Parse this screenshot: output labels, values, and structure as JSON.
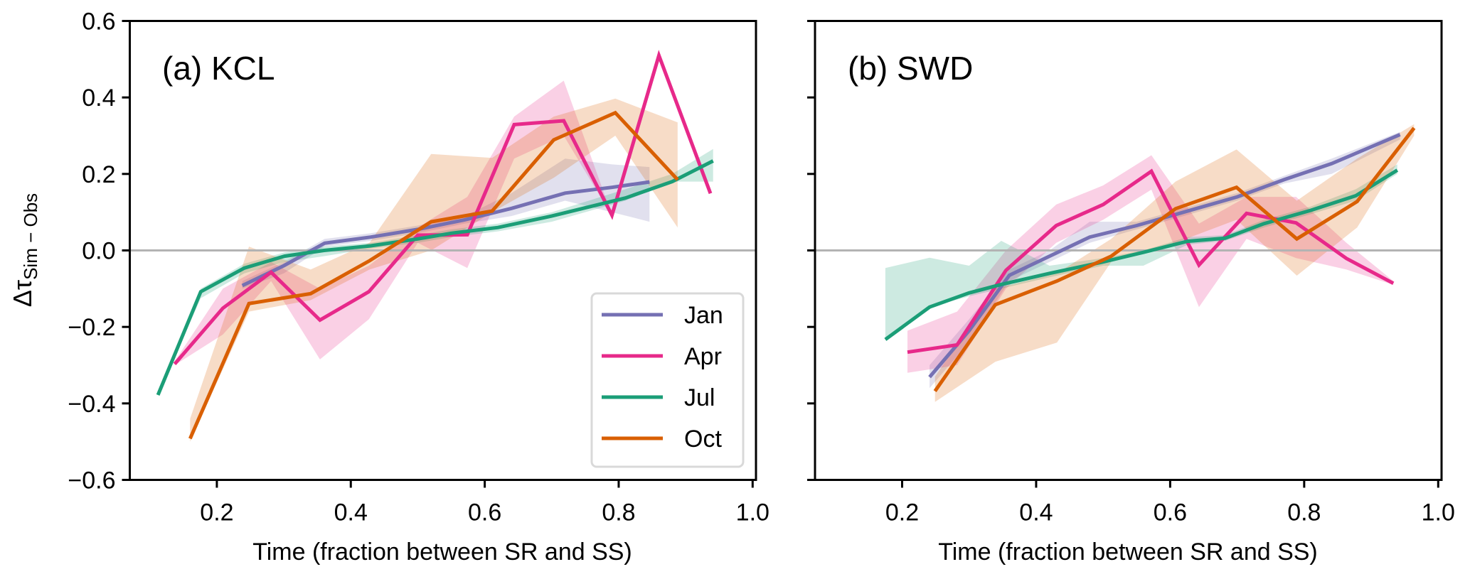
{
  "chart_data": [
    {
      "type": "line",
      "title": "(a) KCL",
      "xlabel": "Time (fraction between SR and SS)",
      "ylabel": "Δτ",
      "ylabel_subscript": "Sim − Obs",
      "xlim": [
        0.07,
        1.005
      ],
      "ylim": [
        -0.6,
        0.6
      ],
      "xticks": [
        0.2,
        0.4,
        0.6,
        0.8,
        1.0
      ],
      "xtick_labels": [
        "0.2",
        "0.4",
        "0.6",
        "0.8",
        "1.0"
      ],
      "yticks": [
        -0.6,
        -0.4,
        -0.2,
        0.0,
        0.2,
        0.4,
        0.6
      ],
      "ytick_labels": [
        "−0.6",
        "−0.4",
        "−0.2",
        "0.0",
        "0.2",
        "0.4",
        "0.6"
      ],
      "reference_line_y": 0.0,
      "grid": false,
      "legend_position": "lower-right",
      "series": [
        {
          "name": "Jan",
          "color": "#7570b3",
          "x": [
            0.238,
            0.3,
            0.361,
            0.43,
            0.5,
            0.57,
            0.64,
            0.72,
            0.79,
            0.846
          ],
          "y": [
            -0.092,
            -0.04,
            0.019,
            0.035,
            0.055,
            0.08,
            0.11,
            0.15,
            0.165,
            0.179
          ],
          "lower": [
            -0.1,
            -0.06,
            0.01,
            0.025,
            0.045,
            0.07,
            0.09,
            0.13,
            0.1,
            0.075
          ],
          "upper": [
            -0.08,
            -0.03,
            0.03,
            0.045,
            0.065,
            0.09,
            0.15,
            0.24,
            0.225,
            0.218
          ]
        },
        {
          "name": "Apr",
          "color": "#e7298a",
          "x": [
            0.137,
            0.209,
            0.281,
            0.354,
            0.427,
            0.5,
            0.574,
            0.644,
            0.718,
            0.79,
            0.86,
            0.937
          ],
          "y": [
            -0.297,
            -0.151,
            -0.057,
            -0.182,
            -0.108,
            0.04,
            0.041,
            0.329,
            0.339,
            0.092,
            0.51,
            0.149
          ],
          "lower": [
            -0.3,
            -0.22,
            -0.08,
            -0.285,
            -0.18,
            0.02,
            -0.046,
            0.24,
            0.3,
            0.09,
            0.51,
            0.149
          ],
          "upper": [
            -0.29,
            -0.1,
            -0.03,
            -0.1,
            -0.04,
            0.06,
            0.14,
            0.35,
            0.444,
            0.092,
            0.51,
            0.149
          ]
        },
        {
          "name": "Jul",
          "color": "#1b9e77",
          "x": [
            0.112,
            0.176,
            0.241,
            0.301,
            0.36,
            0.43,
            0.5,
            0.55,
            0.62,
            0.7,
            0.81,
            0.88,
            0.941
          ],
          "y": [
            -0.378,
            -0.108,
            -0.046,
            -0.015,
            0.0,
            0.012,
            0.03,
            0.045,
            0.06,
            0.09,
            0.137,
            0.18,
            0.234
          ],
          "lower": [
            -0.378,
            -0.125,
            -0.06,
            -0.03,
            -0.015,
            0.005,
            0.02,
            0.035,
            0.05,
            0.075,
            0.13,
            0.18,
            0.18
          ],
          "upper": [
            -0.378,
            -0.1,
            -0.035,
            -0.005,
            0.01,
            0.02,
            0.04,
            0.055,
            0.07,
            0.1,
            0.16,
            0.2,
            0.265
          ]
        },
        {
          "name": "Oct",
          "color": "#d95f02",
          "x": [
            0.16,
            0.248,
            0.34,
            0.428,
            0.52,
            0.611,
            0.703,
            0.795,
            0.888
          ],
          "y": [
            -0.492,
            -0.139,
            -0.113,
            -0.027,
            0.075,
            0.103,
            0.289,
            0.36,
            0.185
          ],
          "lower": [
            -0.5,
            -0.16,
            -0.13,
            -0.05,
            0.0,
            0.1,
            0.19,
            0.3,
            0.06
          ],
          "upper": [
            -0.44,
            0.01,
            -0.05,
            0.02,
            0.252,
            0.242,
            0.35,
            0.397,
            0.335
          ]
        }
      ]
    },
    {
      "type": "line",
      "title": "(b) SWD",
      "xlabel": "Time (fraction between SR and SS)",
      "xlim": [
        0.07,
        1.005
      ],
      "ylim": [
        -0.6,
        0.6
      ],
      "xticks": [
        0.2,
        0.4,
        0.6,
        0.8,
        1.0
      ],
      "xtick_labels": [
        "0.2",
        "0.4",
        "0.6",
        "0.8",
        "1.0"
      ],
      "yticks": [
        -0.6,
        -0.4,
        -0.2,
        0.0,
        0.2,
        0.4,
        0.6
      ],
      "ytick_labels": [],
      "reference_line_y": 0.0,
      "grid": false,
      "series": [
        {
          "name": "Jan",
          "color": "#7570b3",
          "x": [
            0.241,
            0.3,
            0.36,
            0.42,
            0.48,
            0.55,
            0.62,
            0.7,
            0.77,
            0.841,
            0.943
          ],
          "y": [
            -0.331,
            -0.21,
            -0.065,
            -0.015,
            0.035,
            0.065,
            0.1,
            0.14,
            0.185,
            0.227,
            0.303
          ],
          "lower": [
            -0.36,
            -0.24,
            -0.08,
            -0.03,
            0.02,
            0.055,
            0.09,
            0.13,
            0.175,
            0.2,
            0.29
          ],
          "upper": [
            -0.3,
            -0.18,
            -0.05,
            0.0,
            0.075,
            0.075,
            0.11,
            0.15,
            0.195,
            0.24,
            0.31
          ]
        },
        {
          "name": "Apr",
          "color": "#e7298a",
          "x": [
            0.208,
            0.282,
            0.355,
            0.43,
            0.5,
            0.572,
            0.643,
            0.714,
            0.788,
            0.863,
            0.933
          ],
          "y": [
            -0.266,
            -0.247,
            -0.052,
            0.065,
            0.12,
            0.207,
            -0.038,
            0.097,
            0.072,
            -0.021,
            -0.086
          ],
          "lower": [
            -0.32,
            -0.3,
            -0.1,
            0.02,
            0.08,
            0.159,
            -0.148,
            0.03,
            -0.02,
            -0.05,
            -0.09
          ],
          "upper": [
            -0.21,
            -0.16,
            0.0,
            0.12,
            0.17,
            0.249,
            0.07,
            0.14,
            0.14,
            0.02,
            -0.08
          ]
        },
        {
          "name": "Jul",
          "color": "#1b9e77",
          "x": [
            0.175,
            0.241,
            0.3,
            0.348,
            0.42,
            0.5,
            0.56,
            0.626,
            0.682,
            0.74,
            0.81,
            0.877,
            0.939
          ],
          "y": [
            -0.233,
            -0.148,
            -0.111,
            -0.089,
            -0.06,
            -0.03,
            -0.005,
            0.024,
            0.032,
            0.07,
            0.105,
            0.143,
            0.21
          ],
          "lower": [
            -0.233,
            -0.148,
            -0.12,
            -0.1,
            -0.07,
            -0.04,
            -0.04,
            0.015,
            0.025,
            0.06,
            0.095,
            0.13,
            0.2
          ],
          "upper": [
            -0.046,
            -0.019,
            -0.04,
            0.025,
            -0.04,
            -0.02,
            0.0,
            0.035,
            0.04,
            0.08,
            0.115,
            0.16,
            0.225
          ]
        },
        {
          "name": "Oct",
          "color": "#d95f02",
          "x": [
            0.249,
            0.339,
            0.431,
            0.512,
            0.608,
            0.699,
            0.789,
            0.879,
            0.964
          ],
          "y": [
            -0.368,
            -0.142,
            -0.08,
            -0.015,
            0.109,
            0.165,
            0.03,
            0.128,
            0.32
          ],
          "lower": [
            -0.396,
            -0.291,
            -0.241,
            -0.03,
            0.02,
            0.08,
            -0.066,
            0.06,
            0.3
          ],
          "upper": [
            -0.33,
            -0.1,
            -0.06,
            0.03,
            0.18,
            0.264,
            0.13,
            0.24,
            0.33
          ]
        }
      ]
    }
  ],
  "legend": {
    "entries": [
      {
        "label": "Jan",
        "color": "#7570b3"
      },
      {
        "label": "Apr",
        "color": "#e7298a"
      },
      {
        "label": "Jul",
        "color": "#1b9e77"
      },
      {
        "label": "Oct",
        "color": "#d95f02"
      }
    ]
  }
}
